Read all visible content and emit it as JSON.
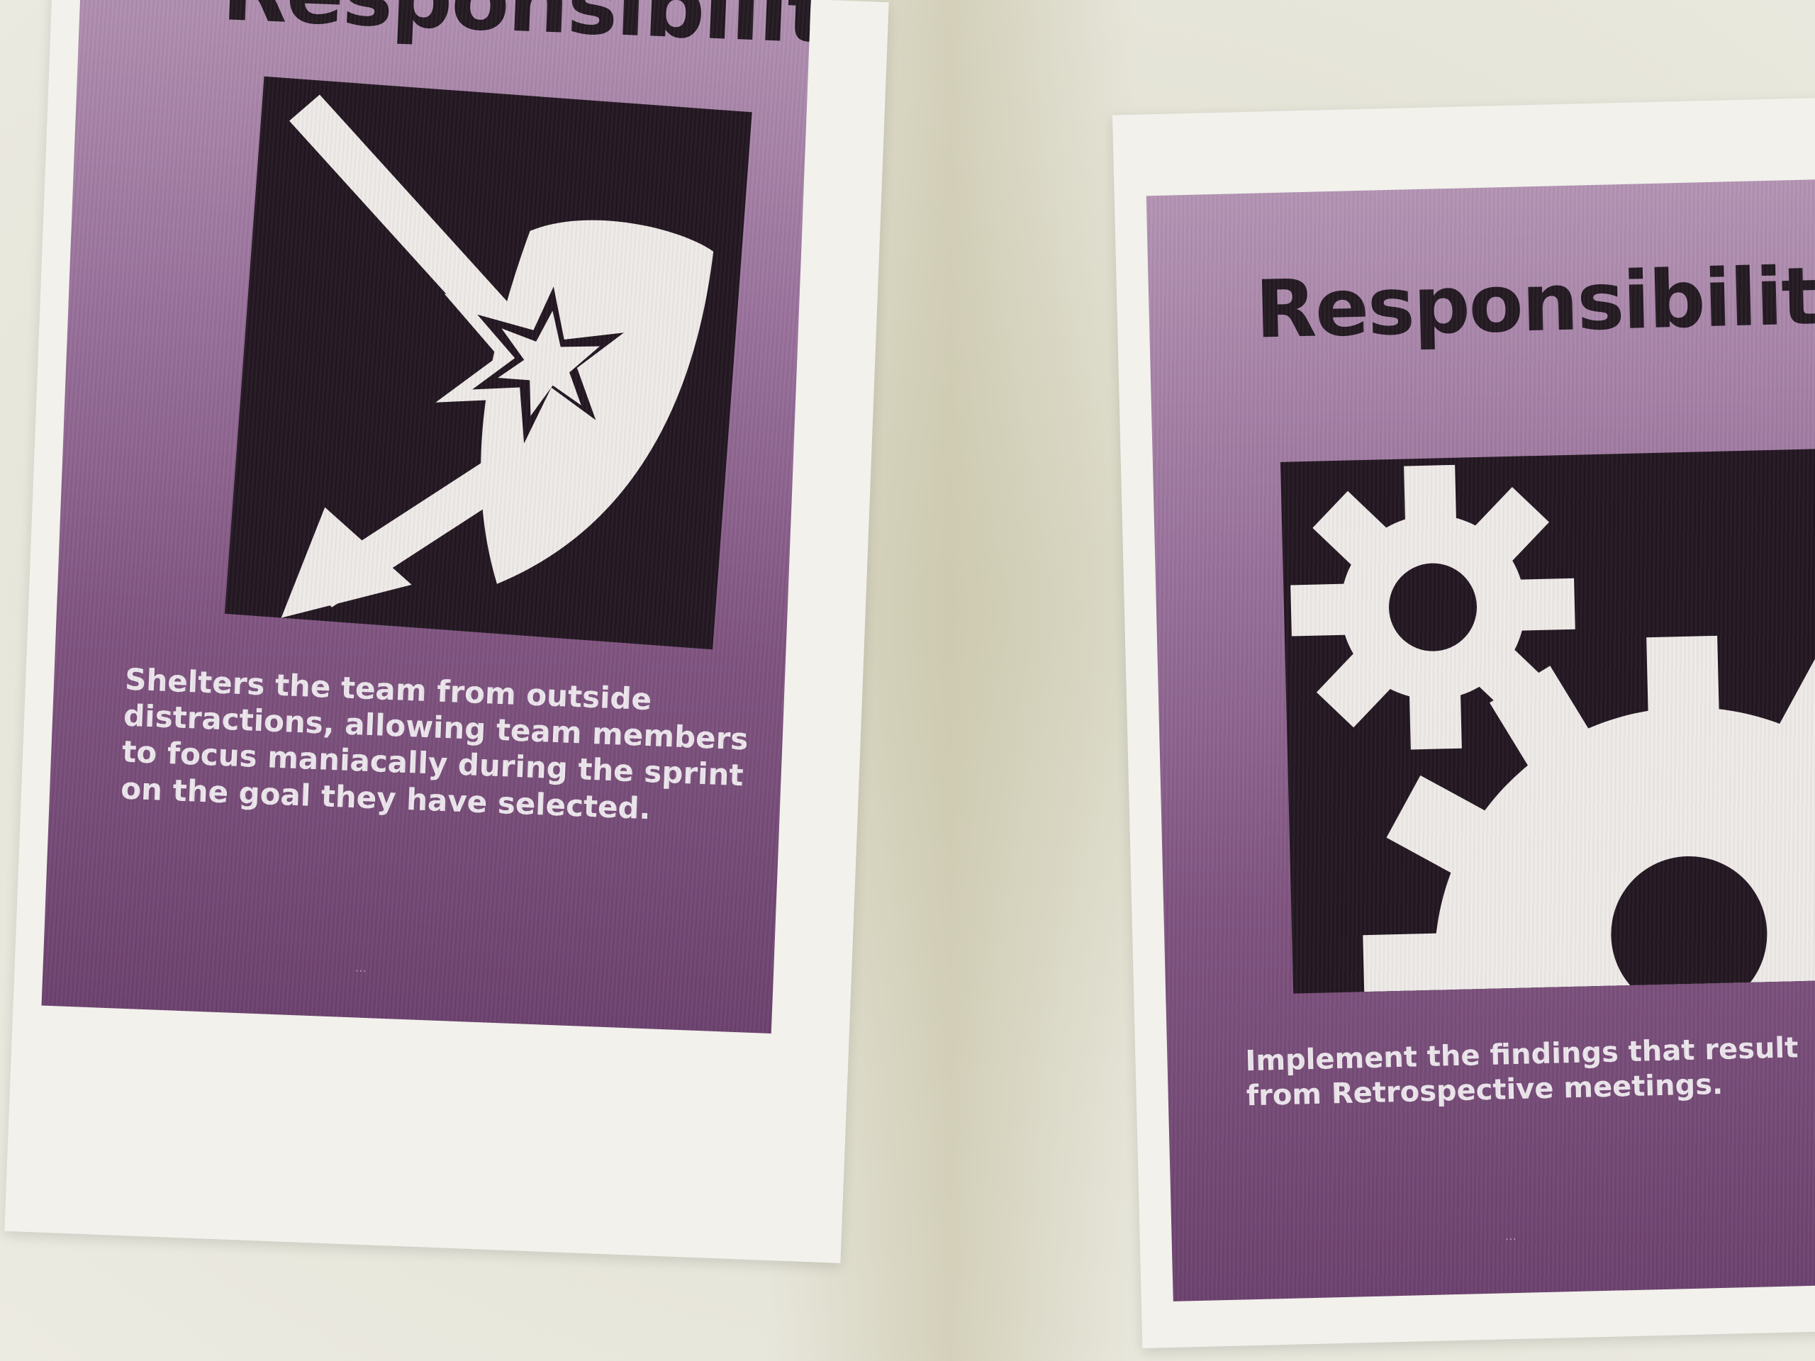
{
  "posters": [
    {
      "title": "Responsibility",
      "icon": "arrow-deflecting-off-shield-icon",
      "description": "Shelters the team from outside distractions, allowing team members to focus maniacally during the sprint on the goal they have selected.",
      "footer": "…"
    },
    {
      "title": "Responsibility",
      "icon": "gears-icon",
      "description": "Implement the findings that result from Retrospective meetings.",
      "footer": "…"
    }
  ],
  "colors": {
    "poster_purple": "#8a5f8b",
    "icon_background": "#231821",
    "title_text": "#231a22",
    "description_text": "#ece6ec",
    "paper": "#f2f1ec",
    "wall": "#e4e3d6"
  }
}
